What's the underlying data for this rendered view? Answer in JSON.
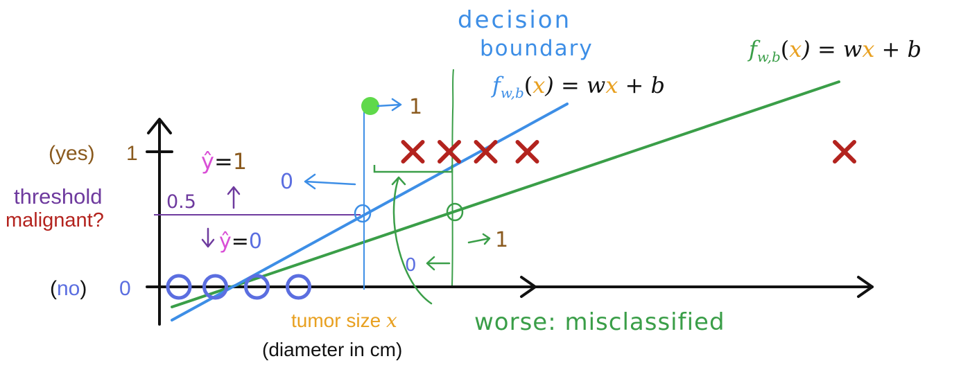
{
  "labels": {
    "yes": "(yes)",
    "one": "1",
    "no_open": "(",
    "no": "no",
    "no_close": ")",
    "zero": "0",
    "threshold": "threshold",
    "malignant": "malignant?",
    "half": "0.5",
    "yhat": "ŷ",
    "eq": "=",
    "tumor_size": "tumor size",
    "x_var": "x",
    "diameter": "(diameter in cm)",
    "decision": "decision",
    "boundary": "boundary",
    "worse": "worse: misclassified",
    "arrow_zero": "0",
    "arrow_one": "1"
  },
  "formula": {
    "f": "f",
    "sub": "w,b",
    "open": "(",
    "x": "x",
    "rest": ") = w",
    "x2": "x",
    "tail": " + b"
  },
  "chart_data": {
    "type": "scatter",
    "title": "",
    "xlabel": "tumor size x (diameter in cm)",
    "ylabel": "malignant?",
    "yticks": [
      "0",
      "0.5",
      "1"
    ],
    "threshold": 0.5,
    "series": [
      {
        "name": "no",
        "marker": "circle",
        "x": [
          0.0,
          0.7,
          1.5,
          2.3
        ],
        "y": [
          0,
          0,
          0,
          0
        ]
      },
      {
        "name": "yes",
        "marker": "cross",
        "x": [
          4.5,
          5.2,
          5.9,
          6.7,
          12.8
        ],
        "y": [
          1,
          1,
          1,
          1,
          1
        ]
      }
    ],
    "colors": {
      "axis": "#111111",
      "blue": "#3d8ee6",
      "green": "#3a9e48",
      "cross": "#b3231e",
      "circle": "#5b6ee0",
      "purple": "#6e3a9e",
      "magenta": "#d94fd6",
      "orange": "#e8a020",
      "brown": "#8a5a1e",
      "lime": "#5fd94a"
    }
  }
}
